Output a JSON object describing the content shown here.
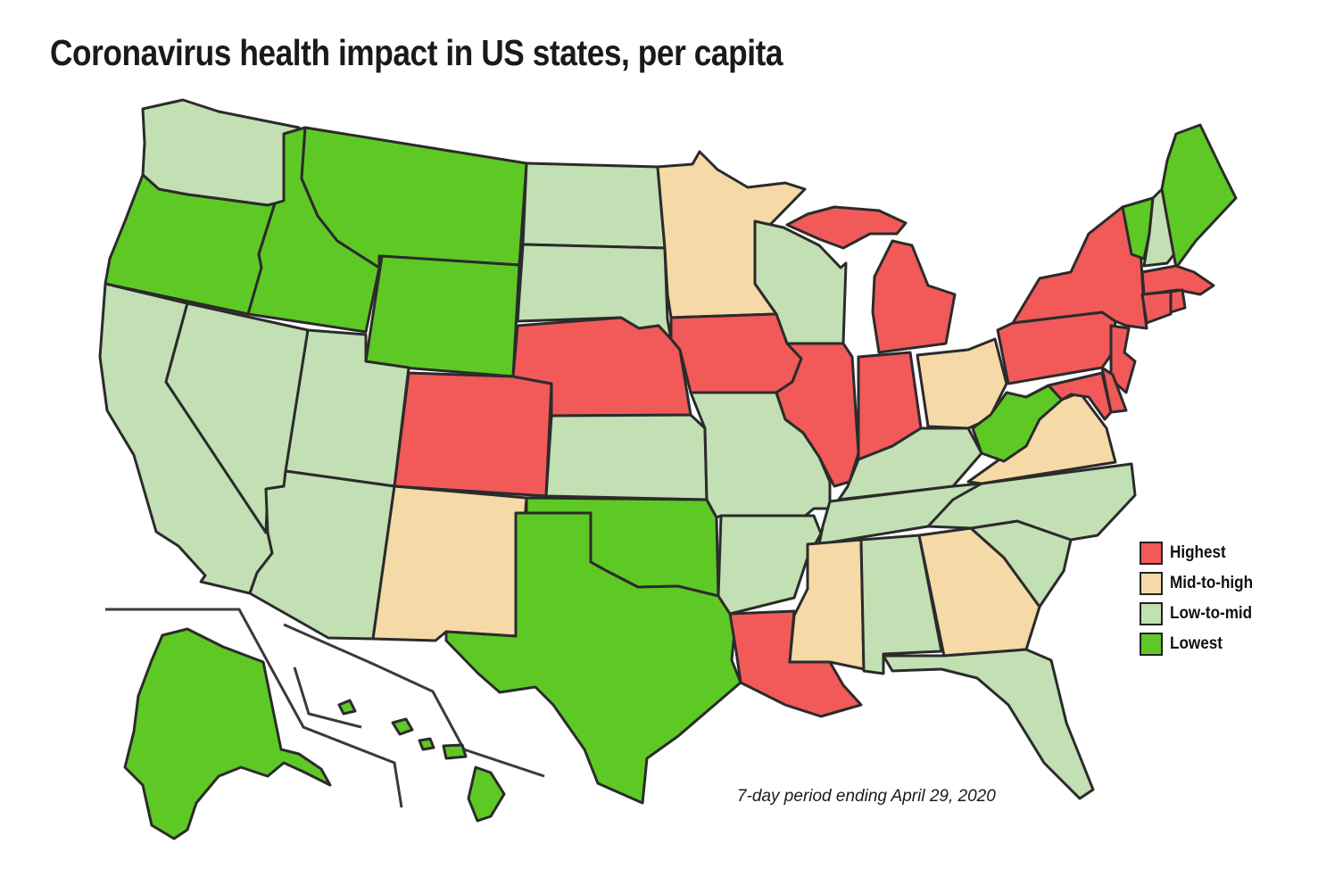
{
  "title": "Coronavirus health impact in US states, per capita",
  "note": "7-day period ending April 29, 2020",
  "colors": {
    "highest": "#f25959",
    "mid_to_high": "#f5d9a6",
    "low_to_mid": "#c2e0b3",
    "lowest": "#5ec924",
    "border": "#2b2b2b"
  },
  "legend": [
    {
      "key": "highest",
      "label": "Highest"
    },
    {
      "key": "mid_to_high",
      "label": "Mid-to-high"
    },
    {
      "key": "low_to_mid",
      "label": "Low-to-mid"
    },
    {
      "key": "lowest",
      "label": "Lowest"
    }
  ],
  "states": {
    "WA": "low_to_mid",
    "OR": "lowest",
    "CA": "low_to_mid",
    "ID": "lowest",
    "NV": "low_to_mid",
    "MT": "lowest",
    "WY": "lowest",
    "UT": "low_to_mid",
    "AZ": "low_to_mid",
    "CO": "highest",
    "NM": "mid_to_high",
    "ND": "low_to_mid",
    "SD": "low_to_mid",
    "NE": "highest",
    "KS": "low_to_mid",
    "OK": "lowest",
    "TX": "lowest",
    "MN": "mid_to_high",
    "IA": "highest",
    "MO": "low_to_mid",
    "AR": "low_to_mid",
    "LA": "highest",
    "WI": "low_to_mid",
    "IL": "highest",
    "MI": "highest",
    "IN": "highest",
    "OH": "mid_to_high",
    "KY": "low_to_mid",
    "TN": "low_to_mid",
    "MS": "mid_to_high",
    "AL": "low_to_mid",
    "GA": "mid_to_high",
    "FL": "low_to_mid",
    "SC": "low_to_mid",
    "NC": "low_to_mid",
    "VA": "mid_to_high",
    "WV": "lowest",
    "PA": "highest",
    "NY": "highest",
    "VT": "lowest",
    "NH": "low_to_mid",
    "ME": "lowest",
    "MA": "highest",
    "CT": "highest",
    "RI": "highest",
    "NJ": "highest",
    "DE": "highest",
    "MD": "highest",
    "AK": "lowest",
    "HI": "lowest"
  }
}
